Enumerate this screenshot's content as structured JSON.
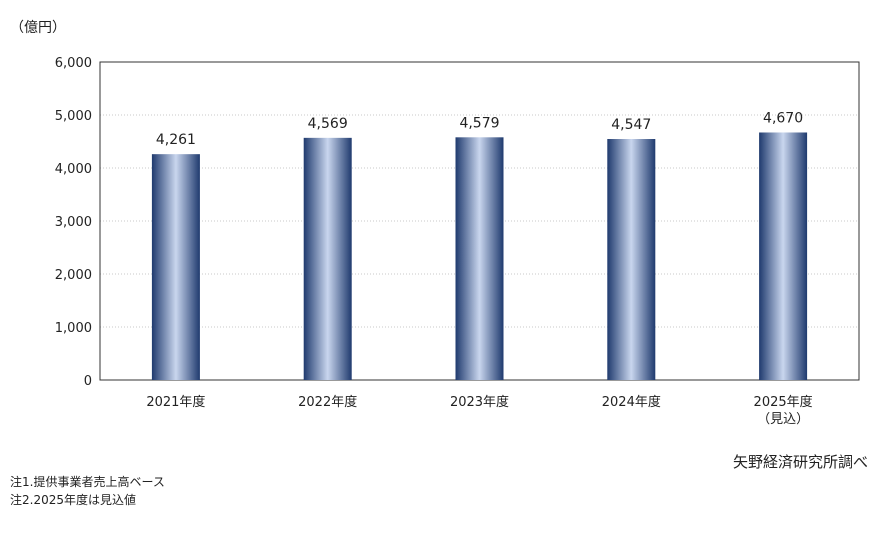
{
  "chart_data": {
    "type": "bar",
    "ylabel": "（億円）",
    "ylim": [
      0,
      6000
    ],
    "yticks": [
      "0",
      "1,000",
      "2,000",
      "3,000",
      "4,000",
      "5,000",
      "6,000"
    ],
    "categories": [
      [
        "2021年度"
      ],
      [
        "2022年度"
      ],
      [
        "2023年度"
      ],
      [
        "2024年度"
      ],
      [
        "2025年度",
        "（見込）"
      ]
    ],
    "values": [
      4261,
      4569,
      4579,
      4547,
      4670
    ],
    "data_labels": [
      "4,261",
      "4,569",
      "4,579",
      "4,547",
      "4,670"
    ],
    "grid": true,
    "bar_color_dark": "#1f3a6e",
    "bar_color_light": "#c9d6ee"
  },
  "source": "矢野経済研究所調べ",
  "notes": [
    "注1.提供事業者売上高ベース",
    "注2.2025年度は見込値"
  ]
}
